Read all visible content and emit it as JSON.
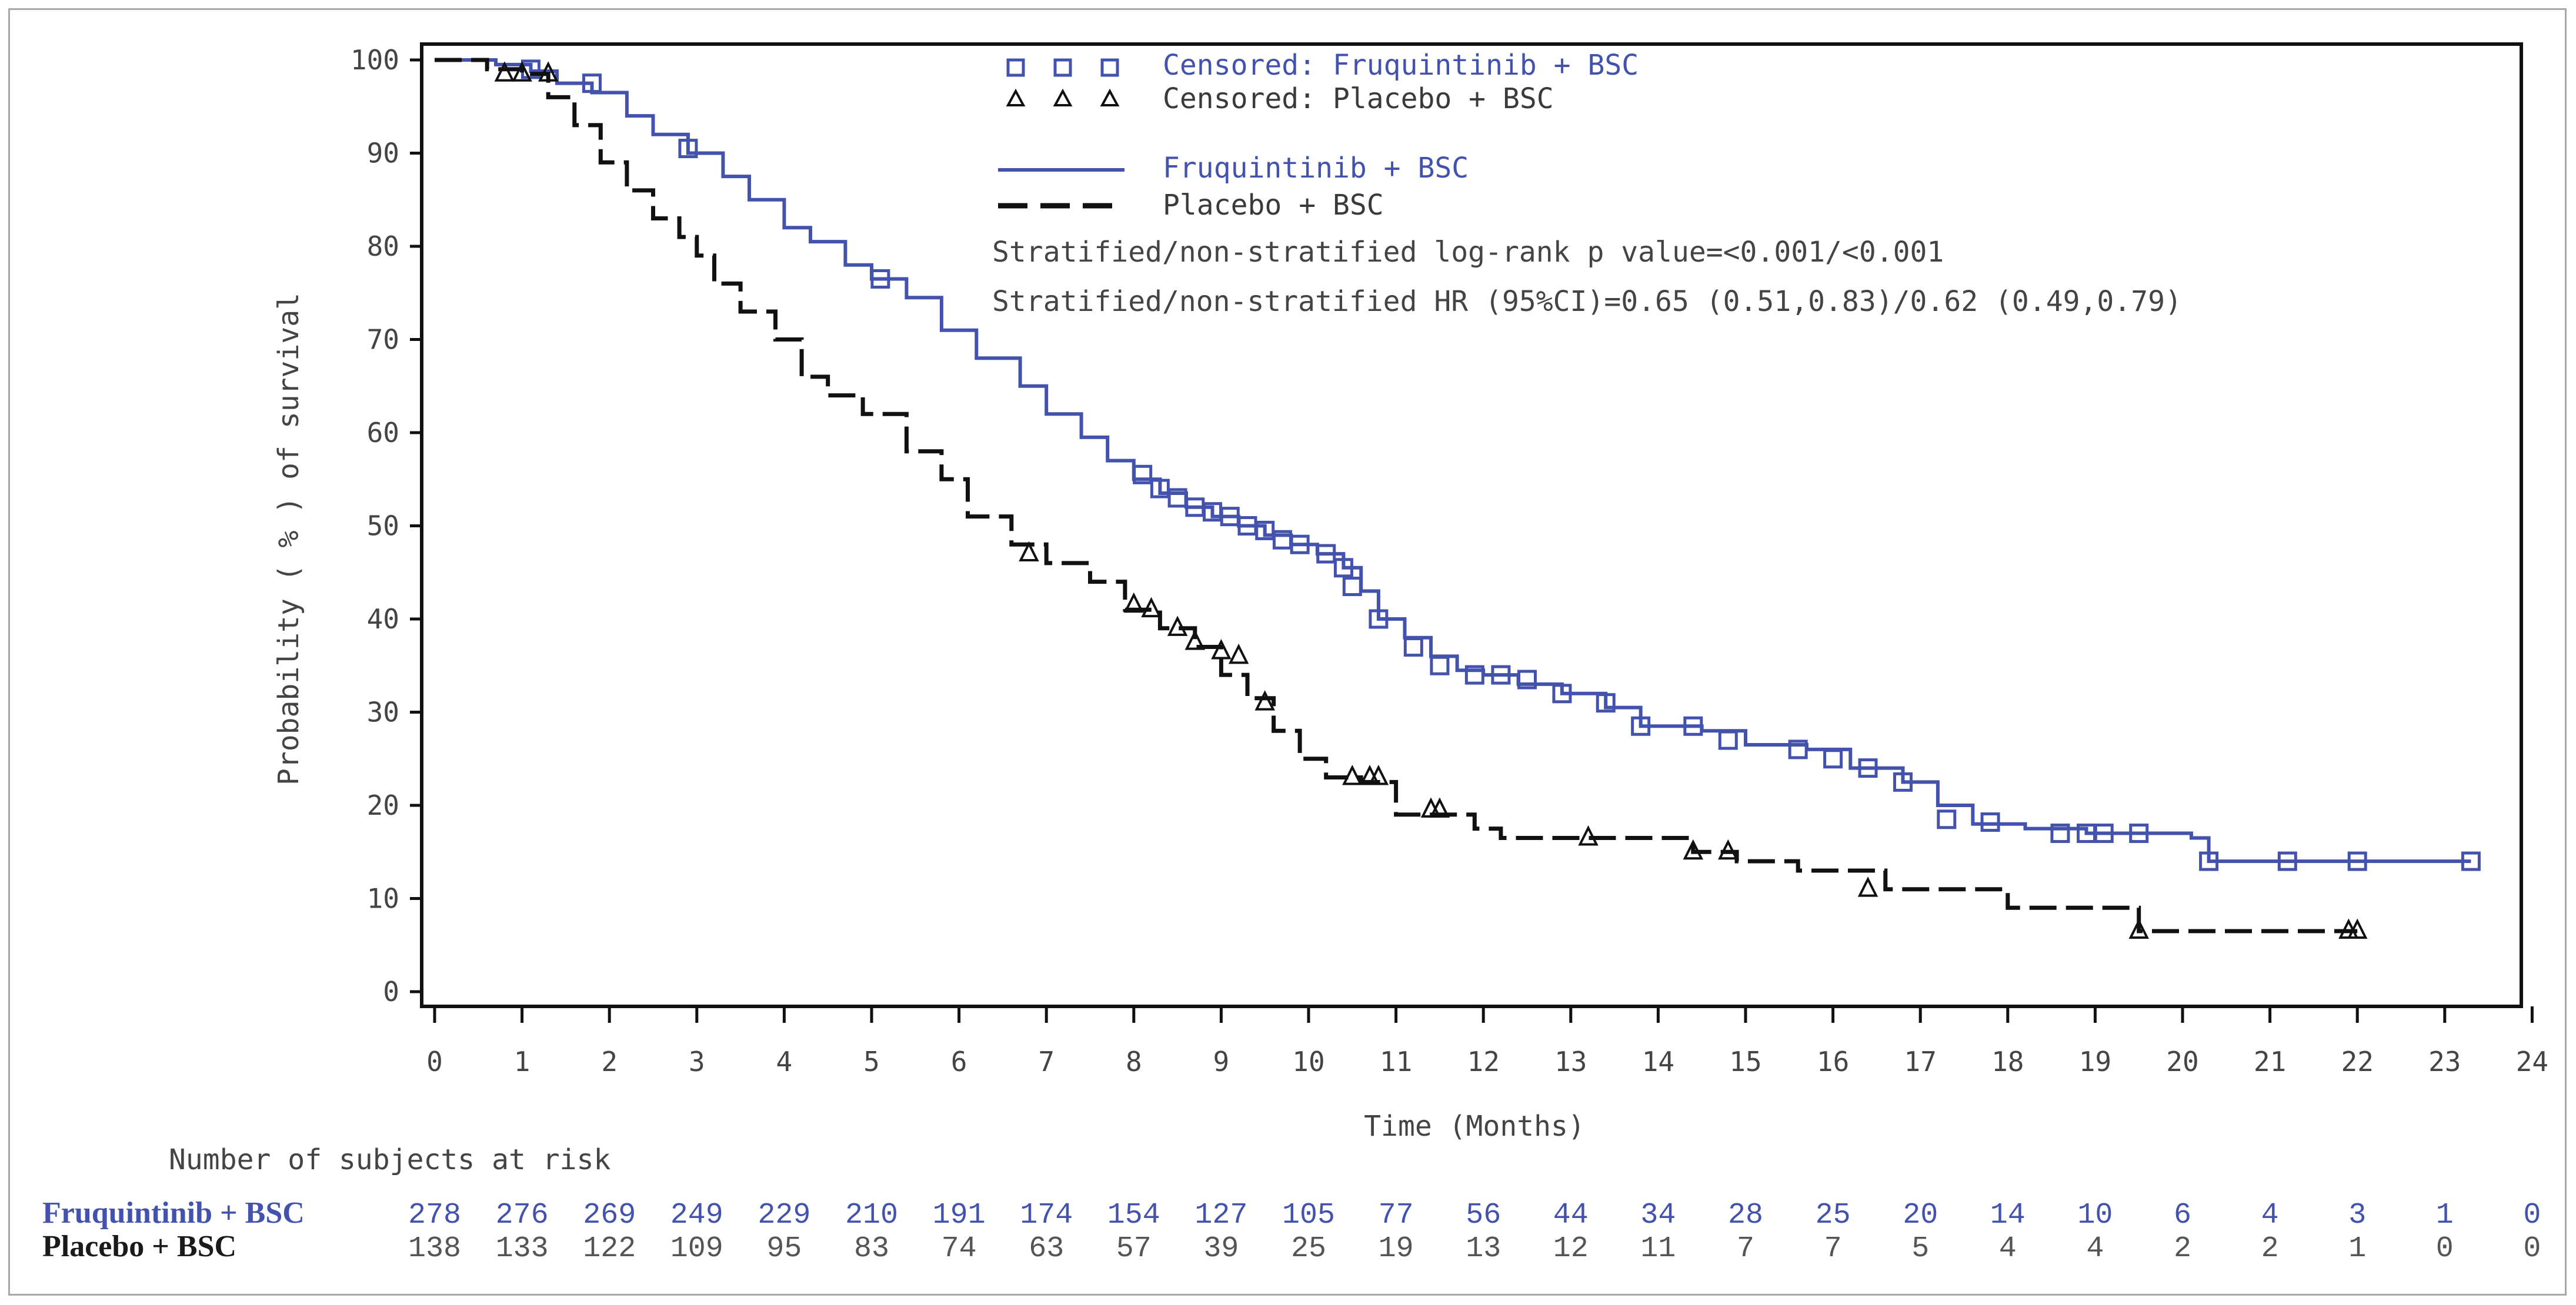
{
  "chart_data": {
    "type": "line",
    "subtype": "kaplan-meier",
    "title": "",
    "xlabel": "Time (Months)",
    "ylabel": "Probability ( % ) of survival",
    "xlim": [
      0,
      24
    ],
    "ylim": [
      0,
      100
    ],
    "x_ticks": [
      0,
      1,
      2,
      3,
      4,
      5,
      6,
      7,
      8,
      9,
      10,
      11,
      12,
      13,
      14,
      15,
      16,
      17,
      18,
      19,
      20,
      21,
      22,
      23,
      24
    ],
    "y_ticks": [
      0,
      10,
      20,
      30,
      40,
      50,
      60,
      70,
      80,
      90,
      100
    ],
    "grid": false,
    "legend_position": "top-center",
    "series": [
      {
        "name": "Fruquintinib + BSC",
        "color": "#4352ad",
        "line_style": "solid",
        "censor_marker": "square",
        "censor_label": "Censored: Fruquintinib + BSC",
        "x": [
          0,
          0.7,
          1.1,
          1.4,
          1.8,
          2.2,
          2.5,
          2.9,
          3.3,
          3.6,
          4.0,
          4.3,
          4.7,
          5.0,
          5.4,
          5.8,
          6.2,
          6.7,
          7.0,
          7.4,
          7.7,
          8.0,
          8.3,
          8.6,
          8.9,
          9.2,
          9.5,
          9.8,
          10.1,
          10.4,
          10.6,
          10.8,
          11.1,
          11.4,
          11.7,
          12.0,
          12.4,
          12.9,
          13.4,
          13.8,
          14.5,
          15.0,
          15.7,
          16.2,
          16.8,
          17.2,
          17.6,
          18.2,
          18.9,
          19.5,
          20.1,
          20.3,
          21.5,
          22.3,
          23.3
        ],
        "y": [
          100,
          99.5,
          98.8,
          97.5,
          96.5,
          94,
          92,
          90,
          87.5,
          85,
          82,
          80.5,
          78,
          76.5,
          74.5,
          71,
          68,
          65,
          62,
          59.5,
          57,
          55,
          53.5,
          52,
          51,
          50,
          49,
          48,
          47,
          45.5,
          43,
          40,
          38,
          36,
          34.5,
          34,
          33,
          32,
          30.5,
          28.5,
          28,
          26.5,
          26,
          24,
          22.5,
          20,
          18,
          17.5,
          17,
          17,
          16.5,
          14,
          14,
          14,
          14
        ],
        "censor_x": [
          1.1,
          1.8,
          2.9,
          5.1,
          8.1,
          8.3,
          8.5,
          8.7,
          8.9,
          9.1,
          9.3,
          9.5,
          9.7,
          9.9,
          10.2,
          10.4,
          10.5,
          10.8,
          11.2,
          11.5,
          11.9,
          12.2,
          12.5,
          12.9,
          13.4,
          13.8,
          14.4,
          14.8,
          15.6,
          16.0,
          16.4,
          16.8,
          17.3,
          17.8,
          18.6,
          18.9,
          19.1,
          19.5,
          20.3,
          21.2,
          22.0,
          23.3
        ],
        "censor_y": [
          99,
          97.5,
          90.5,
          76.5,
          55.5,
          54,
          53,
          52,
          51.5,
          51,
          50,
          49.5,
          48.5,
          48,
          47,
          45.5,
          43.5,
          40,
          37,
          35,
          34,
          34,
          33.5,
          32,
          31,
          28.5,
          28.5,
          27,
          26,
          25,
          24,
          22.5,
          18.5,
          18.2,
          17,
          17,
          17,
          17,
          14,
          14,
          14,
          14
        ]
      },
      {
        "name": "Placebo + BSC",
        "color": "#111111",
        "line_style": "dashed",
        "censor_marker": "triangle",
        "censor_label": "Censored: Placebo + BSC",
        "x": [
          0,
          0.6,
          1.0,
          1.3,
          1.6,
          1.9,
          2.2,
          2.5,
          2.8,
          3.0,
          3.2,
          3.5,
          3.9,
          4.2,
          4.5,
          4.9,
          5.4,
          5.8,
          6.1,
          6.6,
          7.0,
          7.5,
          7.9,
          8.3,
          8.7,
          9.0,
          9.3,
          9.6,
          9.9,
          10.2,
          10.6,
          11.0,
          11.5,
          11.9,
          12.2,
          12.6,
          13.2,
          13.8,
          14.4,
          14.9,
          15.6,
          16.2,
          16.6,
          17.2,
          18.0,
          18.7,
          19.5,
          20.0,
          21.0,
          22.0
        ],
        "y": [
          100,
          99,
          98.5,
          96,
          93,
          89,
          86,
          83,
          81,
          79,
          76,
          73,
          70,
          66,
          64,
          62,
          58,
          55,
          51,
          48,
          46,
          44,
          41,
          39,
          37,
          34,
          31.5,
          28,
          25,
          23,
          22.5,
          19,
          19,
          17.5,
          16.5,
          16.5,
          16.5,
          16.5,
          15,
          14,
          13,
          13,
          11,
          11,
          9,
          9,
          6.5,
          6.5,
          6.5,
          6.5
        ],
        "censor_x": [
          0.8,
          1.0,
          1.3,
          6.8,
          8.0,
          8.2,
          8.5,
          8.7,
          9.0,
          9.2,
          9.5,
          10.5,
          10.7,
          10.8,
          11.4,
          11.5,
          13.2,
          14.4,
          14.8,
          16.4,
          19.5,
          21.9,
          22.0
        ],
        "censor_y": [
          98.5,
          98.5,
          98.5,
          47,
          41.5,
          41,
          39,
          37.5,
          36.5,
          36,
          31,
          23,
          23,
          23,
          19.5,
          19.5,
          16.5,
          15,
          15,
          11,
          6.5,
          6.5,
          6.5
        ]
      }
    ],
    "annotations": [
      "Stratified/non-stratified log-rank p value=<0.001/<0.001",
      "Stratified/non-stratified HR (95%CI)=0.65 (0.51,0.83)/0.62 (0.49,0.79)"
    ],
    "risk_table": {
      "title": "Number of subjects at risk",
      "times": [
        0,
        1,
        2,
        3,
        4,
        5,
        6,
        7,
        8,
        9,
        10,
        11,
        12,
        13,
        14,
        15,
        16,
        17,
        18,
        19,
        20,
        21,
        22,
        23,
        24
      ],
      "rows": [
        {
          "label": "Fruquintinib + BSC",
          "color": "#4352ad",
          "values": [
            278,
            276,
            269,
            249,
            229,
            210,
            191,
            174,
            154,
            127,
            105,
            77,
            56,
            44,
            34,
            28,
            25,
            20,
            14,
            10,
            6,
            4,
            3,
            1,
            0
          ]
        },
        {
          "label": "Placebo + BSC",
          "color": "#1a1a1a",
          "values": [
            138,
            133,
            122,
            109,
            95,
            83,
            74,
            63,
            57,
            39,
            25,
            19,
            13,
            12,
            11,
            7,
            7,
            5,
            4,
            4,
            2,
            2,
            1,
            0,
            0
          ]
        }
      ]
    }
  }
}
